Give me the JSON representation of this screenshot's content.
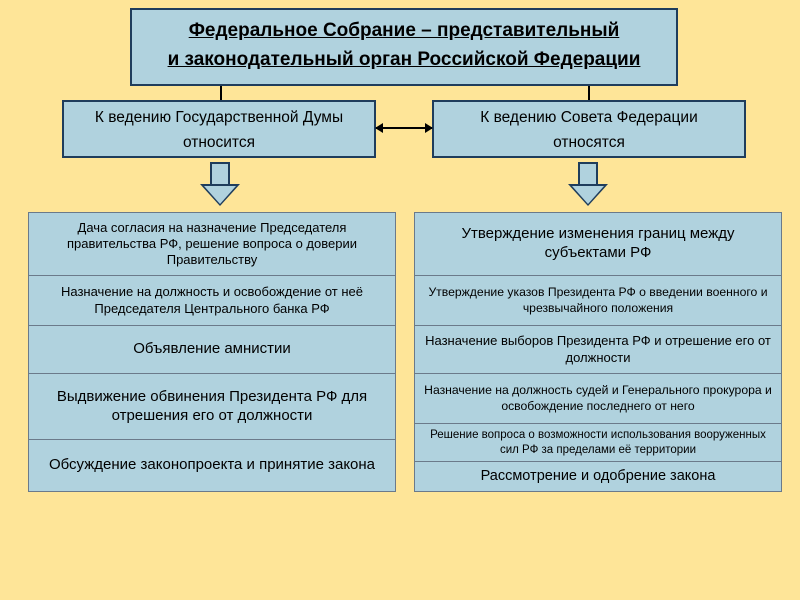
{
  "colors": {
    "background": "#fee598",
    "box_fill": "#b0d2de",
    "box_border": "#1f3d5c",
    "cell_border": "#6b7a8a",
    "text": "#000000",
    "arrow_fill": "#b0d2de",
    "arrow_border": "#1f3d5c"
  },
  "typography": {
    "header_fontsize": 19,
    "sub_fontsize": 15.5,
    "cell_fontsize_normal": 15,
    "cell_fontsize_small": 13,
    "font_family": "Arial"
  },
  "header": {
    "line1": "Федеральное Собрание – представительный",
    "line2": "и законодательный орган Российской Федерации"
  },
  "subs": {
    "left": {
      "line1": "К ведению Государственной Думы",
      "line2": "относится"
    },
    "right": {
      "line1": "К ведению Совета Федерации",
      "line2": "относятся"
    }
  },
  "left_cells": [
    {
      "text": "Дача согласия на назначение Председателя правительства РФ, решение вопроса о доверии Правительству",
      "height": 64,
      "fontsize": 13
    },
    {
      "text": "Назначение на должность и освобождение от неё Председателя Центрального банка РФ",
      "height": 50,
      "fontsize": 13
    },
    {
      "text": "Объявление амнистии",
      "height": 48,
      "fontsize": 15
    },
    {
      "text": "Выдвижение обвинения Президента РФ для отрешения его от должности",
      "height": 66,
      "fontsize": 15
    },
    {
      "text": "Обсуждение законопроекта и принятие закона",
      "height": 52,
      "fontsize": 15
    }
  ],
  "right_cells": [
    {
      "text": "Утверждение изменения границ между субъектами РФ",
      "height": 64,
      "fontsize": 15
    },
    {
      "text": "Утверждение указов Президента РФ о введении военного и чрезвычайного положения",
      "height": 50,
      "fontsize": 12.2
    },
    {
      "text": "Назначение выборов Президента РФ и отрешение его от должности",
      "height": 48,
      "fontsize": 13
    },
    {
      "text": "Назначение на должность судей и Генерального прокурора и освобождение последнего от него",
      "height": 50,
      "fontsize": 12.2
    },
    {
      "text": "Решение вопроса о возможности использования вооруженных сил РФ за пределами её территории",
      "height": 38,
      "fontsize": 11.5
    },
    {
      "text": "Рассмотрение и одобрение закона",
      "height": 30,
      "fontsize": 14.5
    }
  ]
}
